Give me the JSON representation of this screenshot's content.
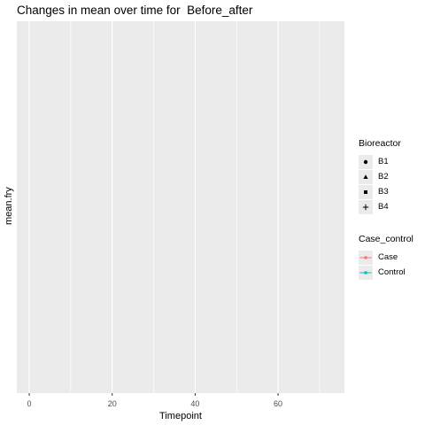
{
  "chart_data": {
    "type": "line",
    "title": "Changes in mean over time for  Before_after",
    "xlabel": "Timepoint",
    "ylabel": "mean.fry",
    "xlim": [
      -3,
      76
    ],
    "x_ticks": [
      0,
      20,
      40,
      60
    ],
    "series": [],
    "grid": true,
    "legend_position": "right",
    "legends": [
      {
        "title": "Bioreactor",
        "entries": [
          {
            "label": "B1",
            "shape": "circle"
          },
          {
            "label": "B2",
            "shape": "triangle"
          },
          {
            "label": "B3",
            "shape": "square"
          },
          {
            "label": "B4",
            "shape": "plus"
          }
        ]
      },
      {
        "title": "Case_control",
        "entries": [
          {
            "label": "Case",
            "color": "#f8766d"
          },
          {
            "label": "Control",
            "color": "#00bfc4"
          }
        ]
      }
    ],
    "panel_color": "#ebebeb",
    "grid_color": "#ffffff"
  }
}
